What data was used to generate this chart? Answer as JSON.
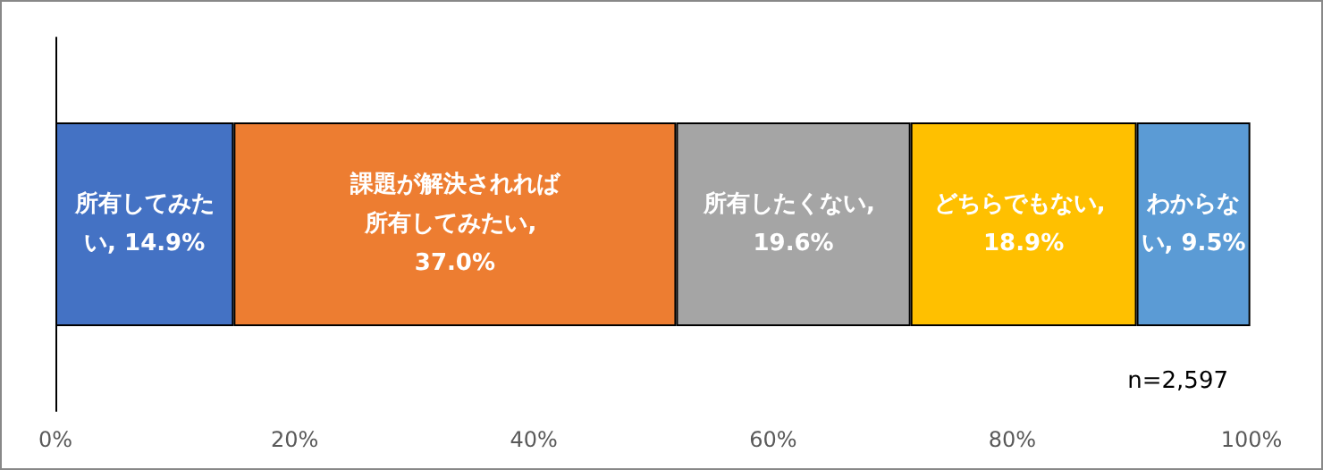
{
  "chart_data": {
    "type": "bar",
    "orientation": "horizontal",
    "stacked": true,
    "categories": [
      null
    ],
    "series": [
      {
        "color": "#4472c4",
        "values": [
          14.9
        ],
        "value_labels": [
          "所有してみたい, 14.9%"
        ]
      },
      {
        "color": "#ed7d31",
        "values": [
          37.0
        ],
        "value_labels": [
          "課題が解決されれば所有してみたい, 37.0%"
        ]
      },
      {
        "color": "#a5a5a5",
        "values": [
          19.6
        ],
        "value_labels": [
          "所有したくない, 19.6%"
        ]
      },
      {
        "color": "#ffc000",
        "values": [
          18.9
        ],
        "value_labels": [
          "どちらでもない, 18.9%"
        ]
      },
      {
        "color": "#5b9bd5",
        "values": [
          9.5
        ],
        "value_labels": [
          "わからない, 9.5%"
        ]
      }
    ],
    "xlim": [
      0,
      100
    ],
    "xticks": [
      {
        "value": 0,
        "label": "0%"
      },
      {
        "value": 20,
        "label": "20%"
      },
      {
        "value": 40,
        "label": "40%"
      },
      {
        "value": 60,
        "label": "60%"
      },
      {
        "value": 80,
        "label": "80%"
      },
      {
        "value": 100,
        "label": "100%"
      }
    ],
    "grid": false,
    "annotations": [
      "n=2,597"
    ]
  }
}
